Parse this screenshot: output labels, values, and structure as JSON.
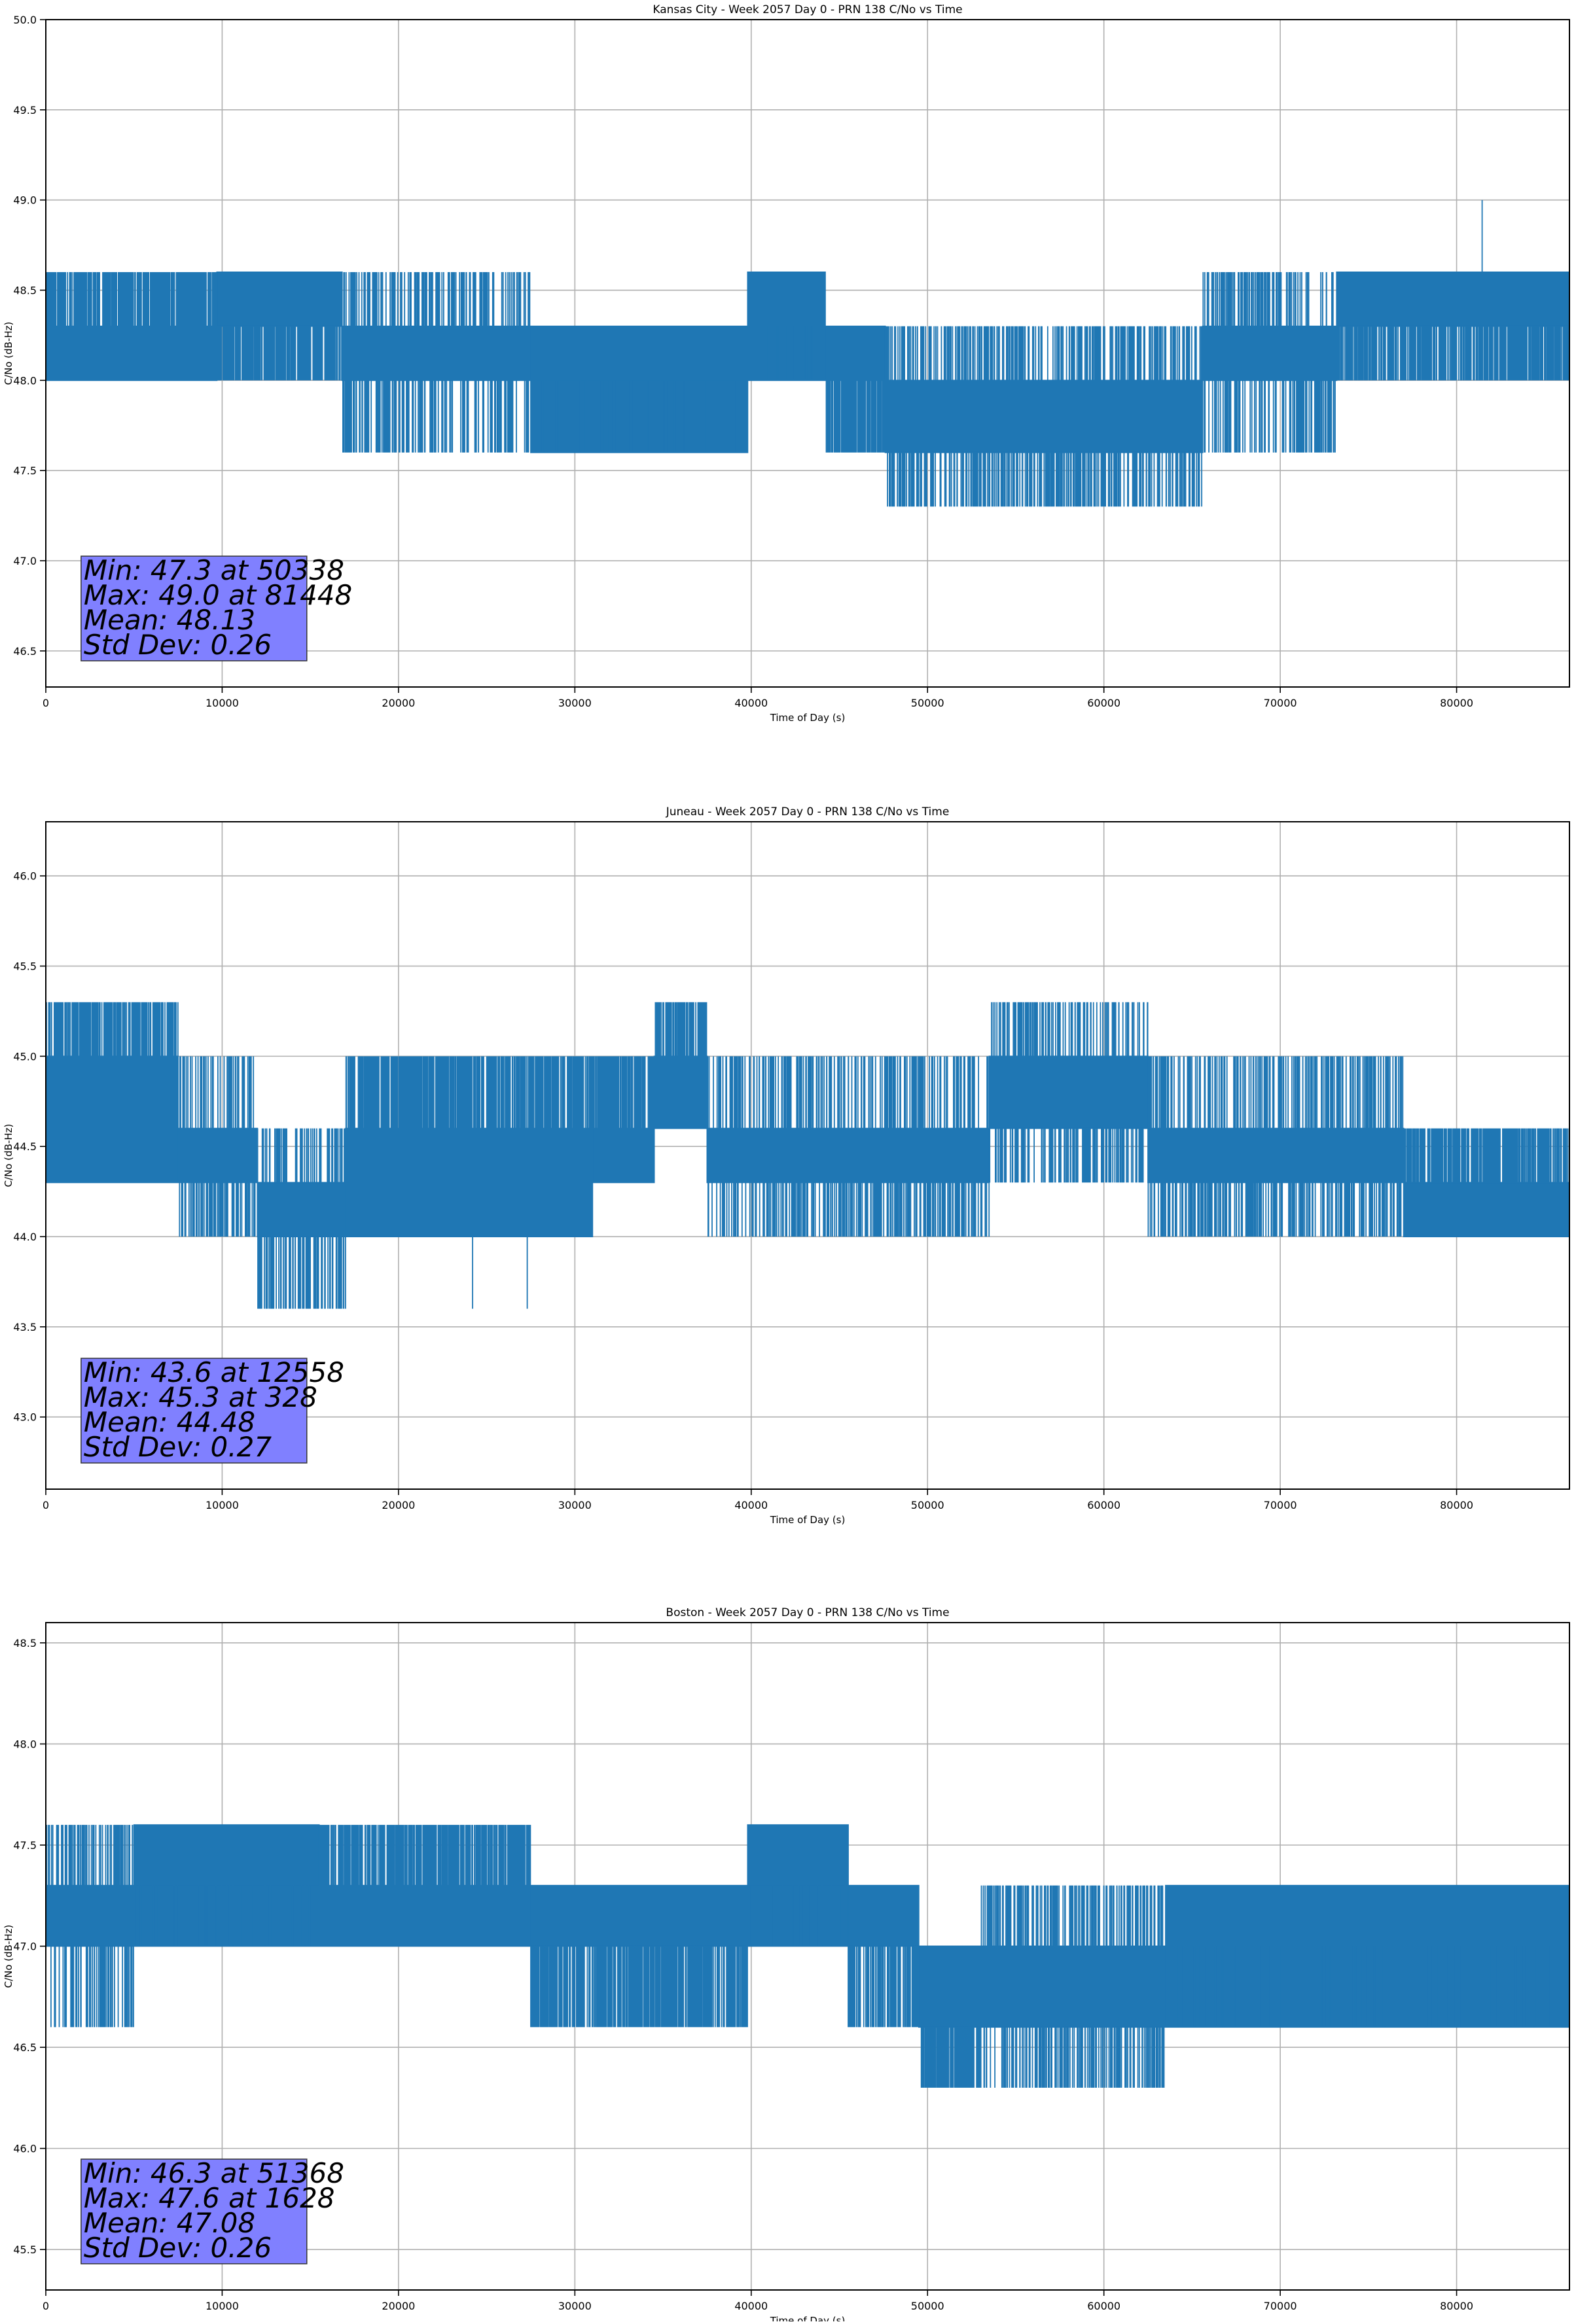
{
  "chart_data": [
    {
      "type": "line",
      "title": "Kansas City - Week 2057 Day 0 - PRN 138 C/No vs Time",
      "xlabel": "Time of Day (s)",
      "ylabel": "C/No (dB-Hz)",
      "xlim": [
        0,
        86400
      ],
      "ylim": [
        46.3,
        50.0
      ],
      "xticks": [
        0,
        10000,
        20000,
        30000,
        40000,
        50000,
        60000,
        70000,
        80000
      ],
      "yticks": [
        "46.5",
        "47.0",
        "47.5",
        "48.0",
        "48.5",
        "49.0",
        "49.5",
        "50.0"
      ],
      "grid": true,
      "color": "#1f77b4",
      "segments": [
        {
          "x": [
            0,
            9700
          ],
          "lo": 48.0,
          "hi": 48.3,
          "spikes": [
            48.6
          ]
        },
        {
          "x": [
            9700,
            16800
          ],
          "lo": 48.3,
          "hi": 48.6,
          "spikes": [
            48.0
          ]
        },
        {
          "x": [
            16800,
            27500
          ],
          "lo": 48.0,
          "hi": 48.3,
          "spikes": [
            48.6,
            47.6
          ]
        },
        {
          "x": [
            27500,
            39800
          ],
          "lo": 47.6,
          "hi": 48.3,
          "spikes": [
            48.0
          ]
        },
        {
          "x": [
            39800,
            44200
          ],
          "lo": 48.0,
          "hi": 48.6,
          "spikes": [
            48.3
          ]
        },
        {
          "x": [
            44200,
            47600
          ],
          "lo": 48.0,
          "hi": 48.3,
          "spikes": [
            47.6
          ]
        },
        {
          "x": [
            47600,
            65600
          ],
          "lo": 47.6,
          "hi": 48.0,
          "spikes": [
            48.3,
            47.3
          ]
        },
        {
          "x": [
            65600,
            73200
          ],
          "lo": 48.0,
          "hi": 48.3,
          "spikes": [
            47.6,
            48.6
          ]
        },
        {
          "x": [
            73200,
            86400
          ],
          "lo": 48.3,
          "hi": 48.6,
          "spikes": [
            48.0
          ]
        }
      ],
      "extremes": [
        {
          "x": 81448,
          "y": 49.0
        },
        {
          "x": 50338,
          "y": 47.3
        },
        {
          "x": 51900,
          "y": 47.3
        },
        {
          "x": 62600,
          "y": 47.3
        }
      ],
      "stats": [
        "Min: 47.3 at 50338",
        "Max: 49.0 at 81448",
        "Mean: 48.13",
        "Std Dev: 0.26"
      ]
    },
    {
      "type": "line",
      "title": "Juneau - Week 2057 Day 0 - PRN 138 C/No vs Time",
      "xlabel": "Time of Day (s)",
      "ylabel": "C/No (dB-Hz)",
      "xlim": [
        0,
        86400
      ],
      "ylim": [
        42.6,
        46.3
      ],
      "xticks": [
        0,
        10000,
        20000,
        30000,
        40000,
        50000,
        60000,
        70000,
        80000
      ],
      "yticks": [
        "43.0",
        "43.5",
        "44.0",
        "44.5",
        "45.0",
        "45.5",
        "46.0"
      ],
      "grid": true,
      "color": "#1f77b4",
      "segments": [
        {
          "x": [
            0,
            7500
          ],
          "lo": 44.3,
          "hi": 45.0,
          "spikes": [
            45.3
          ]
        },
        {
          "x": [
            7500,
            12000
          ],
          "lo": 44.3,
          "hi": 44.6,
          "spikes": [
            45.0,
            44.0
          ]
        },
        {
          "x": [
            12000,
            17000
          ],
          "lo": 44.0,
          "hi": 44.3,
          "spikes": [
            43.6,
            44.6
          ]
        },
        {
          "x": [
            17000,
            31000
          ],
          "lo": 44.0,
          "hi": 44.6,
          "spikes": [
            45.0
          ]
        },
        {
          "x": [
            31000,
            34500
          ],
          "lo": 44.3,
          "hi": 44.6,
          "spikes": [
            45.0
          ]
        },
        {
          "x": [
            34500,
            37500
          ],
          "lo": 44.6,
          "hi": 45.0,
          "spikes": [
            45.3
          ]
        },
        {
          "x": [
            37500,
            53500
          ],
          "lo": 44.3,
          "hi": 44.6,
          "spikes": [
            45.0,
            44.0
          ]
        },
        {
          "x": [
            53500,
            62500
          ],
          "lo": 44.6,
          "hi": 45.0,
          "spikes": [
            45.3,
            44.3
          ]
        },
        {
          "x": [
            62500,
            77000
          ],
          "lo": 44.3,
          "hi": 44.6,
          "spikes": [
            45.0,
            44.0
          ]
        },
        {
          "x": [
            77000,
            86400
          ],
          "lo": 44.0,
          "hi": 44.3,
          "spikes": [
            44.6
          ]
        }
      ],
      "extremes": [
        {
          "x": 328,
          "y": 45.3
        },
        {
          "x": 12558,
          "y": 43.6
        },
        {
          "x": 24200,
          "y": 43.6
        },
        {
          "x": 27300,
          "y": 43.6
        }
      ],
      "stats": [
        "Min: 43.6 at 12558",
        "Max: 45.3 at 328",
        "Mean: 44.48",
        "Std Dev: 0.27"
      ]
    },
    {
      "type": "line",
      "title": "Boston - Week 2057 Day 0 - PRN 138 C/No vs Time",
      "xlabel": "Time of Day (s)",
      "ylabel": "C/No (dB-Hz)",
      "xlim": [
        0,
        86400
      ],
      "ylim": [
        45.3,
        48.6
      ],
      "xticks": [
        0,
        10000,
        20000,
        30000,
        40000,
        50000,
        60000,
        70000,
        80000
      ],
      "yticks": [
        "45.5",
        "46.0",
        "46.5",
        "47.0",
        "47.5",
        "48.0",
        "48.5"
      ],
      "grid": true,
      "color": "#1f77b4",
      "segments": [
        {
          "x": [
            0,
            5000
          ],
          "lo": 47.0,
          "hi": 47.3,
          "spikes": [
            47.6,
            46.6
          ]
        },
        {
          "x": [
            5000,
            15500
          ],
          "lo": 47.0,
          "hi": 47.6,
          "spikes": [
            47.3
          ]
        },
        {
          "x": [
            15500,
            27500
          ],
          "lo": 47.0,
          "hi": 47.3,
          "spikes": [
            47.6
          ]
        },
        {
          "x": [
            27500,
            39800
          ],
          "lo": 47.0,
          "hi": 47.3,
          "spikes": [
            46.6
          ]
        },
        {
          "x": [
            39800,
            45500
          ],
          "lo": 47.0,
          "hi": 47.6,
          "spikes": [
            47.3
          ]
        },
        {
          "x": [
            45500,
            49500
          ],
          "lo": 47.0,
          "hi": 47.3,
          "spikes": [
            46.6
          ]
        },
        {
          "x": [
            49500,
            53000
          ],
          "lo": 46.6,
          "hi": 47.0,
          "spikes": [
            46.3
          ]
        },
        {
          "x": [
            53000,
            63500
          ],
          "lo": 46.6,
          "hi": 47.0,
          "spikes": [
            46.3,
            47.3
          ]
        },
        {
          "x": [
            63500,
            86400
          ],
          "lo": 46.6,
          "hi": 47.3,
          "spikes": [
            47.0
          ]
        }
      ],
      "extremes": [
        {
          "x": 1628,
          "y": 47.6
        },
        {
          "x": 51368,
          "y": 46.3
        },
        {
          "x": 57000,
          "y": 46.3
        },
        {
          "x": 61500,
          "y": 46.3
        }
      ],
      "stats": [
        "Min: 46.3 at 51368",
        "Max: 47.6 at 1628",
        "Mean: 47.08",
        "Std Dev: 0.26"
      ]
    }
  ]
}
